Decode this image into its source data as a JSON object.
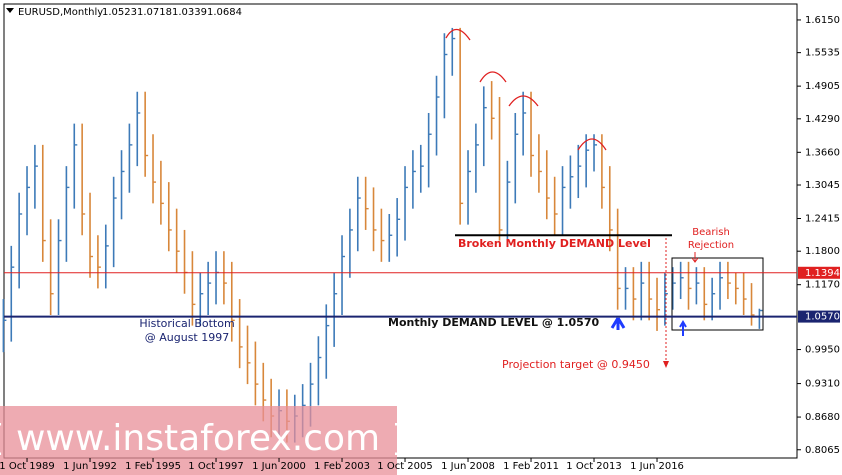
{
  "chart_data": {
    "type": "ohlc",
    "symbol": "EURUSD,Monthly",
    "ohlc": [
      1.0523,
      1.0718,
      1.0339,
      1.0684
    ],
    "categories": [
      null,
      null,
      null,
      "1 Oct 1989",
      null,
      null,
      null,
      null,
      null,
      null,
      null,
      "1 Jun 1992",
      null,
      null,
      null,
      null,
      null,
      null,
      null,
      "1 Feb 1995",
      null,
      null,
      null,
      null,
      null,
      null,
      null,
      "1 Oct 1997",
      null,
      null,
      null,
      null,
      null,
      null,
      null,
      "1 Jun 2000",
      null,
      null,
      null,
      null,
      null,
      null,
      null,
      "1 Feb 2003",
      null,
      null,
      null,
      null,
      null,
      null,
      null,
      "1 Oct 2005",
      null,
      null,
      null,
      null,
      null,
      null,
      null,
      "1 Jun 2008",
      null,
      null,
      null,
      null,
      null,
      null,
      null,
      "1 Feb 2011",
      null,
      null,
      null,
      null,
      null,
      null,
      null,
      "1 Oct 2013",
      null,
      null,
      null,
      null,
      null,
      null,
      null,
      "1 Jun 2016",
      null,
      null,
      null,
      null,
      null,
      null,
      null,
      null,
      null,
      null,
      null,
      null,
      null
    ],
    "high": [
      1.09,
      1.19,
      1.29,
      1.34,
      1.38,
      1.38,
      1.24,
      1.24,
      1.34,
      1.42,
      1.42,
      1.29,
      1.21,
      1.23,
      1.32,
      1.37,
      1.42,
      1.48,
      1.48,
      1.4,
      1.35,
      1.31,
      1.26,
      1.22,
      1.18,
      1.14,
      1.16,
      1.18,
      1.18,
      1.16,
      1.09,
      1.04,
      1.01,
      0.97,
      0.94,
      0.92,
      0.92,
      0.91,
      0.93,
      0.97,
      1.02,
      1.08,
      1.14,
      1.21,
      1.26,
      1.32,
      1.32,
      1.3,
      1.26,
      1.25,
      1.28,
      1.34,
      1.37,
      1.38,
      1.44,
      1.51,
      1.59,
      1.6,
      1.6,
      1.37,
      1.42,
      1.49,
      1.5,
      1.47,
      1.35,
      1.44,
      1.48,
      1.48,
      1.4,
      1.37,
      1.32,
      1.34,
      1.36,
      1.38,
      1.4,
      1.4,
      1.4,
      1.34,
      1.26,
      1.15,
      1.15,
      1.16,
      1.16,
      1.13,
      1.14,
      1.15,
      1.16,
      1.16,
      1.15,
      1.15,
      1.13,
      1.16,
      1.16,
      1.14,
      1.14,
      1.12,
      1.0718
    ],
    "low": [
      0.99,
      1.01,
      1.11,
      1.21,
      1.26,
      1.16,
      1.06,
      1.06,
      1.16,
      1.26,
      1.21,
      1.13,
      1.11,
      1.11,
      1.15,
      1.24,
      1.29,
      1.34,
      1.32,
      1.27,
      1.23,
      1.18,
      1.14,
      1.1,
      1.04,
      1.04,
      1.06,
      1.08,
      1.08,
      1.01,
      0.96,
      0.93,
      0.89,
      0.86,
      0.83,
      0.83,
      0.82,
      0.82,
      0.83,
      0.85,
      0.89,
      0.94,
      1.0,
      1.06,
      1.13,
      1.18,
      1.22,
      1.18,
      1.16,
      1.16,
      1.17,
      1.2,
      1.26,
      1.29,
      1.3,
      1.36,
      1.43,
      1.51,
      1.23,
      1.23,
      1.29,
      1.34,
      1.39,
      1.2,
      1.2,
      1.27,
      1.36,
      1.32,
      1.29,
      1.24,
      1.21,
      1.21,
      1.26,
      1.28,
      1.3,
      1.33,
      1.26,
      1.18,
      1.07,
      1.07,
      1.05,
      1.05,
      1.05,
      1.03,
      1.04,
      1.07,
      1.09,
      1.07,
      1.08,
      1.05,
      1.05,
      1.07,
      1.09,
      1.08,
      1.06,
      1.04,
      1.0339
    ],
    "close": [
      1.05,
      1.15,
      1.25,
      1.3,
      1.34,
      1.2,
      1.1,
      1.2,
      1.3,
      1.38,
      1.25,
      1.17,
      1.15,
      1.19,
      1.28,
      1.33,
      1.38,
      1.44,
      1.36,
      1.31,
      1.27,
      1.22,
      1.18,
      1.14,
      1.08,
      1.1,
      1.12,
      1.14,
      1.12,
      1.05,
      1.0,
      0.97,
      0.93,
      0.9,
      0.87,
      0.88,
      0.86,
      0.87,
      0.89,
      0.93,
      0.98,
      1.04,
      1.1,
      1.17,
      1.22,
      1.28,
      1.26,
      1.22,
      1.2,
      1.21,
      1.24,
      1.3,
      1.33,
      1.34,
      1.4,
      1.47,
      1.55,
      1.58,
      1.27,
      1.33,
      1.38,
      1.45,
      1.43,
      1.22,
      1.31,
      1.4,
      1.44,
      1.36,
      1.33,
      1.28,
      1.25,
      1.3,
      1.32,
      1.34,
      1.37,
      1.38,
      1.3,
      1.22,
      1.11,
      1.11,
      1.09,
      1.12,
      1.09,
      1.07,
      1.1,
      1.12,
      1.13,
      1.11,
      1.12,
      1.08,
      1.1,
      1.13,
      1.12,
      1.11,
      1.09,
      1.06,
      1.0684
    ],
    "up_color": "#3d7ab8",
    "down_color": "#d8873a",
    "ylim": [
      0.791,
      1.645
    ],
    "yticks": [
      {
        "value": 1.615,
        "label": "1.6150"
      },
      1.5535,
      1.4905,
      {
        "value": 1.429,
        "label": "1.4290"
      },
      {
        "value": 1.366,
        "label": "1.3660"
      },
      1.3045,
      1.2415,
      {
        "value": 1.18,
        "label": "1.1800"
      },
      {
        "value": 1.117,
        "label": "1.1170"
      },
      {
        "value": 0.995,
        "label": "0.9950"
      },
      {
        "value": 0.931,
        "label": "0.9310"
      },
      {
        "value": 0.868,
        "label": "0.8680"
      },
      0.8065
    ],
    "levels": [
      {
        "value": 1.1394,
        "label": "1.1394",
        "color": "#e02020"
      },
      {
        "value": 1.057,
        "label": "1.0570",
        "color": "#1a2470"
      }
    ],
    "broken_level": 1.21,
    "annotations": [
      "Broken Monthly DEMAND Level",
      "Monthly DEMAND LEVEL @ 1.0570",
      "Historical Bottom",
      "@ August 1997",
      "Projection target @ 0.9450",
      "Bearish",
      "Rejection"
    ],
    "watermark": "[ www.instaforex.com ]"
  }
}
